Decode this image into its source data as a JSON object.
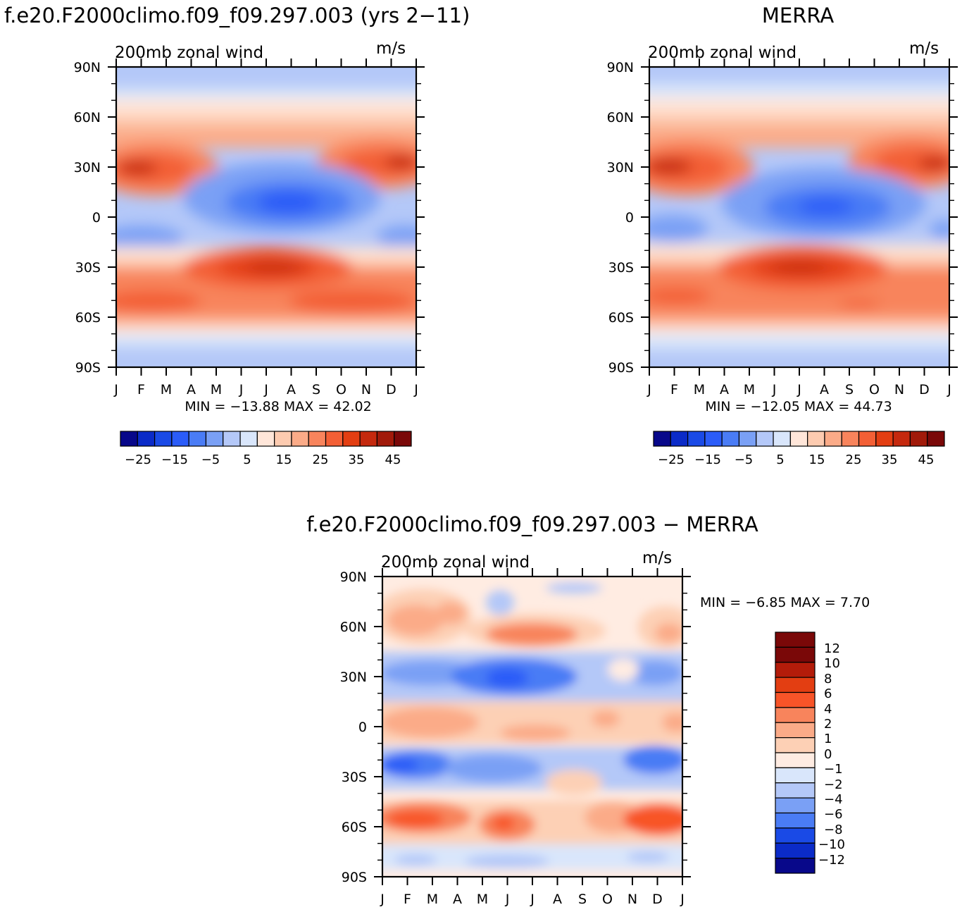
{
  "panels": [
    {
      "title": "f.e20.F2000climo.f09_f09.297.003 (yrs 2−11)",
      "subtitle": "200mb  zonal  wind",
      "units": "m/s",
      "stats": "MIN  =  −13.88  MAX  =    42.02",
      "colorbar_labels": [
        "−25",
        "−15",
        "−5",
        "5",
        "15",
        "25",
        "35",
        "45"
      ]
    },
    {
      "title": "MERRA",
      "subtitle": "200mb  zonal  wind",
      "units": "m/s",
      "stats": "MIN  =  −12.05  MAX  =    44.73",
      "colorbar_labels": [
        "−25",
        "−15",
        "−5",
        "5",
        "15",
        "25",
        "35",
        "45"
      ]
    },
    {
      "title": "f.e20.F2000climo.f09_f09.297.003  −  MERRA",
      "subtitle": "200mb  zonal  wind",
      "units": "m/s",
      "stats": "MIN  =    −6.85  MAX  =     7.70",
      "colorbar_labels": [
        "12",
        "10",
        "8",
        "6",
        "4",
        "2",
        "1",
        "0",
        "−1",
        "−2",
        "−4",
        "−6",
        "−8",
        "−10",
        "−12"
      ]
    }
  ],
  "chart_data": [
    {
      "type": "heatmap",
      "title": "f.e20.F2000climo.f09_f09.297.003 (yrs 2−11)",
      "subtitle": "200mb zonal wind",
      "units": "m/s",
      "x_ticks": [
        "J",
        "F",
        "M",
        "A",
        "M",
        "J",
        "J",
        "A",
        "S",
        "O",
        "N",
        "D",
        "J"
      ],
      "y_ticks": [
        "90N",
        "60N",
        "30N",
        "0",
        "30S",
        "60S",
        "90S"
      ],
      "y_range": [
        -90,
        90
      ],
      "min": -13.88,
      "max": 42.02,
      "contour_levels": [
        -30,
        -25,
        -20,
        -15,
        -10,
        -5,
        0,
        5,
        10,
        15,
        20,
        25,
        30,
        35,
        40,
        45,
        50
      ],
      "colorbar_ticks": [
        -25,
        -15,
        -5,
        5,
        15,
        25,
        35,
        45
      ]
    },
    {
      "type": "heatmap",
      "title": "MERRA",
      "subtitle": "200mb zonal wind",
      "units": "m/s",
      "x_ticks": [
        "J",
        "F",
        "M",
        "A",
        "M",
        "J",
        "J",
        "A",
        "S",
        "O",
        "N",
        "D",
        "J"
      ],
      "y_ticks": [
        "90N",
        "60N",
        "30N",
        "0",
        "30S",
        "60S",
        "90S"
      ],
      "y_range": [
        -90,
        90
      ],
      "min": -12.05,
      "max": 44.73,
      "contour_levels": [
        -30,
        -25,
        -20,
        -15,
        -10,
        -5,
        0,
        5,
        10,
        15,
        20,
        25,
        30,
        35,
        40,
        45,
        50
      ],
      "colorbar_ticks": [
        -25,
        -15,
        -5,
        5,
        15,
        25,
        35,
        45
      ]
    },
    {
      "type": "heatmap",
      "title": "f.e20.F2000climo.f09_f09.297.003 − MERRA",
      "subtitle": "200mb zonal wind",
      "units": "m/s",
      "x_ticks": [
        "J",
        "F",
        "M",
        "A",
        "M",
        "J",
        "J",
        "A",
        "S",
        "O",
        "N",
        "D",
        "J"
      ],
      "y_ticks": [
        "90N",
        "60N",
        "30N",
        "0",
        "30S",
        "60S",
        "90S"
      ],
      "y_range": [
        -90,
        90
      ],
      "min": -6.85,
      "max": 7.7,
      "contour_levels": [
        -12,
        -10,
        -8,
        -6,
        -4,
        -2,
        -1,
        0,
        1,
        2,
        4,
        6,
        8,
        10,
        12
      ],
      "colorbar_ticks": [
        12,
        10,
        8,
        6,
        4,
        2,
        1,
        0,
        -1,
        -2,
        -4,
        -6,
        -8,
        -10,
        -12
      ]
    }
  ],
  "colors": {
    "main_scale": [
      "#08088a",
      "#0b2bc8",
      "#1a4ae6",
      "#2b5cf8",
      "#4a7cf5",
      "#7aa0f5",
      "#b4c8f8",
      "#d9e6fb",
      "#ffe6d9",
      "#fdcbb0",
      "#fbab88",
      "#f8845c",
      "#f35f35",
      "#e33e12",
      "#c5290e",
      "#a11a0a",
      "#7a0808"
    ],
    "diff_scale": [
      "#7a0808",
      "#b31c0a",
      "#e33e12",
      "#f85428",
      "#f8845c",
      "#fbab88",
      "#fdd0b5",
      "#ffece2",
      "#d9e6fb",
      "#b4c8f8",
      "#7aa0f5",
      "#4a7cf5",
      "#1a4ae6",
      "#0b2bc8",
      "#08088a"
    ]
  }
}
